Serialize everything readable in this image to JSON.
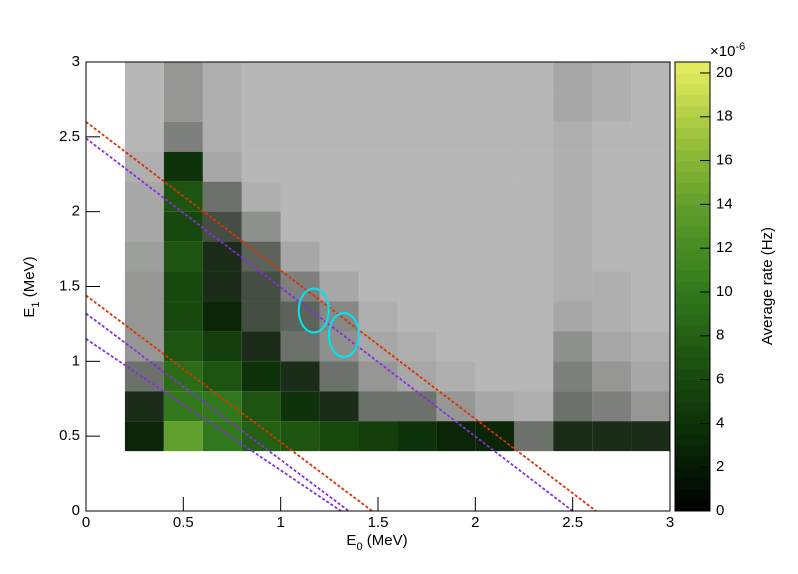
{
  "chart_data": {
    "type": "heatmap",
    "x_label": [
      "E",
      "0",
      " (MeV)"
    ],
    "y_label": [
      "E",
      "1",
      " (MeV)"
    ],
    "z_label": "Average rate (Hz)",
    "z_multiplier": [
      "×10",
      "-6"
    ],
    "xlim": [
      0,
      3
    ],
    "ylim": [
      0,
      3
    ],
    "zlim": [
      0,
      20.5
    ],
    "xticks": [
      0,
      0.5,
      1,
      1.5,
      2,
      2.5,
      3
    ],
    "yticks": [
      0,
      0.5,
      1,
      1.5,
      2,
      2.5,
      3
    ],
    "zticks": [
      0,
      2,
      4,
      6,
      8,
      10,
      12,
      14,
      16,
      18,
      20
    ],
    "colorscale": [
      "#000000",
      "#0b2b07",
      "#1c5210",
      "#337b1d",
      "#5c9c2b",
      "#9cc23b",
      "#e9ef60"
    ],
    "xbins": [
      0,
      0.2,
      0.4,
      0.6,
      0.8,
      1,
      1.2,
      1.4,
      1.6,
      1.8,
      2,
      2.2,
      2.4,
      2.6,
      2.8,
      3
    ],
    "ybins": [
      0,
      0.2,
      0.4,
      0.6,
      0.8,
      1,
      1.2,
      1.4,
      1.6,
      1.8,
      2,
      2.2,
      2.4,
      2.6,
      2.8,
      3
    ],
    "z": [
      [
        0,
        0,
        0,
        0,
        0,
        0,
        0,
        0,
        0,
        0,
        0,
        0,
        0,
        0,
        0
      ],
      [
        0,
        0,
        0,
        0,
        0,
        0,
        0,
        0,
        0,
        0,
        0,
        0,
        0,
        0,
        0
      ],
      [
        0,
        3,
        14,
        10,
        8,
        7,
        6,
        5,
        4,
        3,
        3,
        1,
        2,
        2,
        2
      ],
      [
        0,
        2,
        10,
        10,
        7,
        4,
        2,
        1,
        1,
        0.5,
        0.3,
        0.2,
        1,
        0.8,
        0.5
      ],
      [
        0,
        1,
        9,
        7,
        4,
        2,
        1,
        0.5,
        0.3,
        0.2,
        0.1,
        0.1,
        0.8,
        0.5,
        0.3
      ],
      [
        0,
        0.5,
        7,
        5,
        2,
        1,
        0.6,
        0.3,
        0.2,
        0.1,
        0.1,
        0.1,
        0.6,
        0.3,
        0.2
      ],
      [
        0,
        0.5,
        6,
        3,
        1.5,
        1.2,
        0.7,
        0.2,
        0.1,
        0.1,
        0.1,
        0.1,
        0.3,
        0.2,
        0.1
      ],
      [
        0,
        0.5,
        6,
        2,
        1.5,
        0.8,
        0.3,
        0.1,
        0.1,
        0.1,
        0.1,
        0.1,
        0.2,
        0.2,
        0.1
      ],
      [
        0,
        0.4,
        7,
        2,
        1.2,
        0.3,
        0.1,
        0.1,
        0.1,
        0.1,
        0.1,
        0.1,
        0.2,
        0.1,
        0.1
      ],
      [
        0,
        0.3,
        6,
        1.5,
        0.6,
        0.1,
        0.1,
        0.1,
        0.1,
        0.1,
        0.1,
        0.1,
        0.2,
        0.1,
        0.1
      ],
      [
        0,
        0.3,
        7,
        1,
        0.2,
        0.1,
        0.1,
        0.1,
        0.1,
        0.1,
        0.1,
        0.1,
        0.2,
        0.1,
        0.1
      ],
      [
        0,
        0.2,
        4,
        0.3,
        0.1,
        0.1,
        0.1,
        0.1,
        0.1,
        0.1,
        0.1,
        0.1,
        0.2,
        0.1,
        0.1
      ],
      [
        0,
        0.1,
        0.8,
        0.2,
        0.1,
        0.1,
        0.1,
        0.1,
        0.1,
        0.1,
        0.1,
        0.1,
        0.2,
        0.1,
        0.1
      ],
      [
        0,
        0.1,
        0.5,
        0.2,
        0.1,
        0.1,
        0.1,
        0.1,
        0.1,
        0.1,
        0.1,
        0.1,
        0.3,
        0.2,
        0.1
      ],
      [
        0,
        0.1,
        0.5,
        0.2,
        0.1,
        0.1,
        0.1,
        0.1,
        0.1,
        0.1,
        0.1,
        0.1,
        0.3,
        0.2,
        0.1
      ]
    ],
    "lines": [
      {
        "color": "#e03000",
        "x": [
          0,
          2.62
        ],
        "y": [
          2.6,
          0
        ]
      },
      {
        "color": "#8a2be2",
        "x": [
          0,
          2.5
        ],
        "y": [
          2.49,
          0
        ]
      },
      {
        "color": "#e03000",
        "x": [
          0,
          1.47
        ],
        "y": [
          1.44,
          0
        ]
      },
      {
        "color": "#8a2be2",
        "x": [
          0,
          1.35
        ],
        "y": [
          1.32,
          0
        ]
      },
      {
        "color": "#8a2be2",
        "x": [
          0,
          1.31
        ],
        "y": [
          1.15,
          0
        ]
      }
    ],
    "ellipses": [
      {
        "color": "#00e5ee",
        "cx": 1.17,
        "cy": 1.34,
        "rx": 0.077,
        "ry": 0.147
      },
      {
        "color": "#00e5ee",
        "cx": 1.325,
        "cy": 1.176,
        "rx": 0.077,
        "ry": 0.147
      }
    ]
  }
}
